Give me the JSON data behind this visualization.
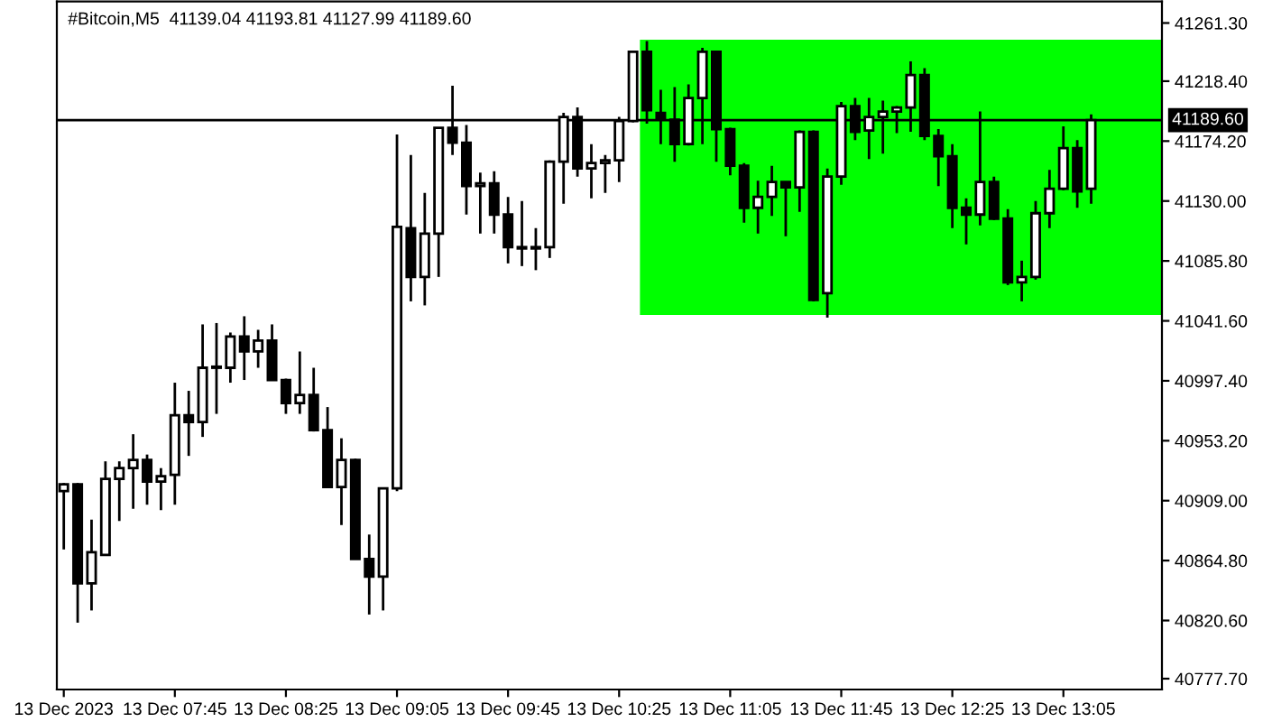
{
  "chart_data": {
    "type": "candlestick",
    "title": "#Bitcoin,M5  41139.04 41193.81 41127.99 41189.60",
    "categories": [
      "13 Dec 2023",
      null,
      null,
      null,
      null,
      null,
      null,
      null,
      "13 Dec 07:45",
      null,
      null,
      null,
      null,
      null,
      null,
      null,
      "13 Dec 08:25",
      null,
      null,
      null,
      null,
      null,
      null,
      null,
      "13 Dec 09:05",
      null,
      null,
      null,
      null,
      null,
      null,
      null,
      "13 Dec 09:45",
      null,
      null,
      null,
      null,
      null,
      null,
      null,
      "13 Dec 10:25",
      null,
      null,
      null,
      null,
      null,
      null,
      null,
      "13 Dec 11:05",
      null,
      null,
      null,
      null,
      null,
      null,
      null,
      "13 Dec 11:45",
      null,
      null,
      null,
      null,
      null,
      null,
      null,
      "13 Dec 12:25",
      null,
      null,
      null,
      null,
      null,
      null,
      null,
      "13 Dec 13:05",
      null,
      null
    ],
    "ohlc": [
      [
        40916,
        40922,
        40873,
        40921
      ],
      [
        40921,
        40922,
        40819,
        40848
      ],
      [
        40848,
        40895,
        40828,
        40871
      ],
      [
        40869,
        40938,
        40869,
        40925
      ],
      [
        40925,
        40938,
        40894,
        40933
      ],
      [
        40933,
        40958,
        40903,
        40939
      ],
      [
        40939,
        40943,
        40906,
        40923
      ],
      [
        40923,
        40933,
        40902,
        40927
      ],
      [
        40928,
        40996,
        40906,
        40972
      ],
      [
        40972,
        40990,
        40942,
        40967
      ],
      [
        40967,
        41039,
        40956,
        41007
      ],
      [
        41007,
        41040,
        40973,
        41007
      ],
      [
        41007,
        41033,
        40996,
        41030
      ],
      [
        41030,
        41045,
        40998,
        41019
      ],
      [
        41019,
        41035,
        41007,
        41027
      ],
      [
        41027,
        41039,
        40998,
        40998
      ],
      [
        40998,
        40999,
        40973,
        40981
      ],
      [
        40981,
        41019,
        40973,
        40987
      ],
      [
        40987,
        41007,
        40960,
        40961
      ],
      [
        40961,
        40978,
        40919,
        40919
      ],
      [
        40919,
        40955,
        40891,
        40939
      ],
      [
        40939,
        40940,
        40866,
        40866
      ],
      [
        40866,
        40884,
        40825,
        40853
      ],
      [
        40853,
        40918,
        40828,
        40918
      ],
      [
        40918,
        41179,
        40916,
        41111
      ],
      [
        41110,
        41164,
        41056,
        41074
      ],
      [
        41074,
        41136,
        41053,
        41106
      ],
      [
        41106,
        41184,
        41074,
        41184
      ],
      [
        41184,
        41215,
        41164,
        41173
      ],
      [
        41173,
        41186,
        41120,
        41141
      ],
      [
        41141,
        41151,
        41106,
        41143
      ],
      [
        41143,
        41152,
        41106,
        41120
      ],
      [
        41120,
        41133,
        41084,
        41096
      ],
      [
        41096,
        41130,
        41082,
        41095
      ],
      [
        41095,
        41110,
        41079,
        41096
      ],
      [
        41096,
        41160,
        41088,
        41159
      ],
      [
        41159,
        41195,
        41128,
        41192
      ],
      [
        41192,
        41199,
        41148,
        41154
      ],
      [
        41154,
        41172,
        41132,
        41158
      ],
      [
        41158,
        41164,
        41136,
        41160
      ],
      [
        41160,
        41192,
        41144,
        41189
      ],
      [
        41189,
        41240,
        41188,
        41240
      ],
      [
        41240,
        41248,
        41187,
        41197
      ],
      [
        41195,
        41212,
        41172,
        41190
      ],
      [
        41190,
        41214,
        41159,
        41172
      ],
      [
        41172,
        41216,
        41171,
        41206
      ],
      [
        41206,
        41243,
        41172,
        41240
      ],
      [
        41240,
        41240,
        41159,
        41183
      ],
      [
        41183,
        41184,
        41149,
        41156
      ],
      [
        41156,
        41158,
        41114,
        41125
      ],
      [
        41125,
        41145,
        41106,
        41133
      ],
      [
        41133,
        41156,
        41119,
        41144
      ],
      [
        41144,
        41144,
        41104,
        41140
      ],
      [
        41140,
        41182,
        41122,
        41181
      ],
      [
        41181,
        41182,
        41056,
        41057
      ],
      [
        41062,
        41154,
        41044,
        41148
      ],
      [
        41148,
        41203,
        41142,
        41200
      ],
      [
        41200,
        41206,
        41175,
        41181
      ],
      [
        41182,
        41206,
        41161,
        41192
      ],
      [
        41192,
        41204,
        41165,
        41196
      ],
      [
        41196,
        41200,
        41180,
        41199
      ],
      [
        41199,
        41233,
        41181,
        41223
      ],
      [
        41223,
        41228,
        41175,
        41178
      ],
      [
        41178,
        41183,
        41141,
        41163
      ],
      [
        41163,
        41172,
        41110,
        41125
      ],
      [
        41125,
        41132,
        41098,
        41120
      ],
      [
        41120,
        41196,
        41112,
        41144
      ],
      [
        41144,
        41148,
        41116,
        41117
      ],
      [
        41117,
        41124,
        41068,
        41070
      ],
      [
        41070,
        41086,
        41056,
        41074
      ],
      [
        41074,
        41130,
        41072,
        41121
      ],
      [
        41121,
        41153,
        41110,
        41139
      ],
      [
        41139,
        41185,
        41138,
        41169
      ],
      [
        41169,
        41175,
        41125,
        41137
      ],
      [
        41139.04,
        41193.81,
        41127.99,
        41189.6
      ]
    ],
    "ylim": [
      40769.7,
      41277.2
    ],
    "yticks": [
      {
        "value": 40777.7,
        "label": "40777.70"
      },
      {
        "value": 40820.6,
        "label": "40820.60"
      },
      {
        "value": 40864.8,
        "label": "40864.80"
      },
      {
        "value": 40909,
        "label": "40909.00"
      },
      {
        "value": 40953.2,
        "label": "40953.20"
      },
      {
        "value": 40997.4,
        "label": "40997.40"
      },
      {
        "value": 41041.6,
        "label": "41041.60"
      },
      {
        "value": 41085.8,
        "label": "41085.80"
      },
      {
        "value": 41130,
        "label": "41130.00"
      },
      {
        "value": 41174.2,
        "label": "41174.20"
      },
      {
        "value": 41218.4,
        "label": "41218.40"
      },
      {
        "value": 41261.3,
        "label": "41261.30"
      }
    ],
    "ref_lines": [
      {
        "axis": "y",
        "value": 41189.6,
        "label": "41189.60",
        "color": "#000000"
      }
    ],
    "bands": [
      {
        "axis": "y",
        "from": 41046,
        "to": 41249,
        "color": "#00ff00"
      }
    ],
    "grid": false,
    "legend": false
  }
}
